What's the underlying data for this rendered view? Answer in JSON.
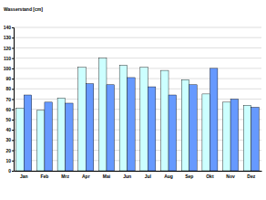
{
  "chart_data": {
    "type": "bar",
    "y_label": "Wasserstand [cm]",
    "categories": [
      "Jan",
      "Feb",
      "Mrz",
      "Apr",
      "Mai",
      "Jun",
      "Jul",
      "Aug",
      "Sep",
      "Okt",
      "Nov",
      "Dez"
    ],
    "series": [
      {
        "color": "#ccffff",
        "values": [
          61,
          59,
          71,
          101,
          110,
          103,
          101,
          98,
          89,
          75,
          67,
          64
        ]
      },
      {
        "color": "#6699ff",
        "values": [
          74,
          67,
          66,
          85,
          84,
          91,
          82,
          74,
          84,
          100,
          70,
          62
        ]
      }
    ],
    "ylim": [
      0,
      140
    ],
    "yticks": [
      0,
      10,
      20,
      30,
      40,
      50,
      60,
      70,
      80,
      90,
      100,
      110,
      120,
      130,
      140
    ],
    "grid": true
  }
}
